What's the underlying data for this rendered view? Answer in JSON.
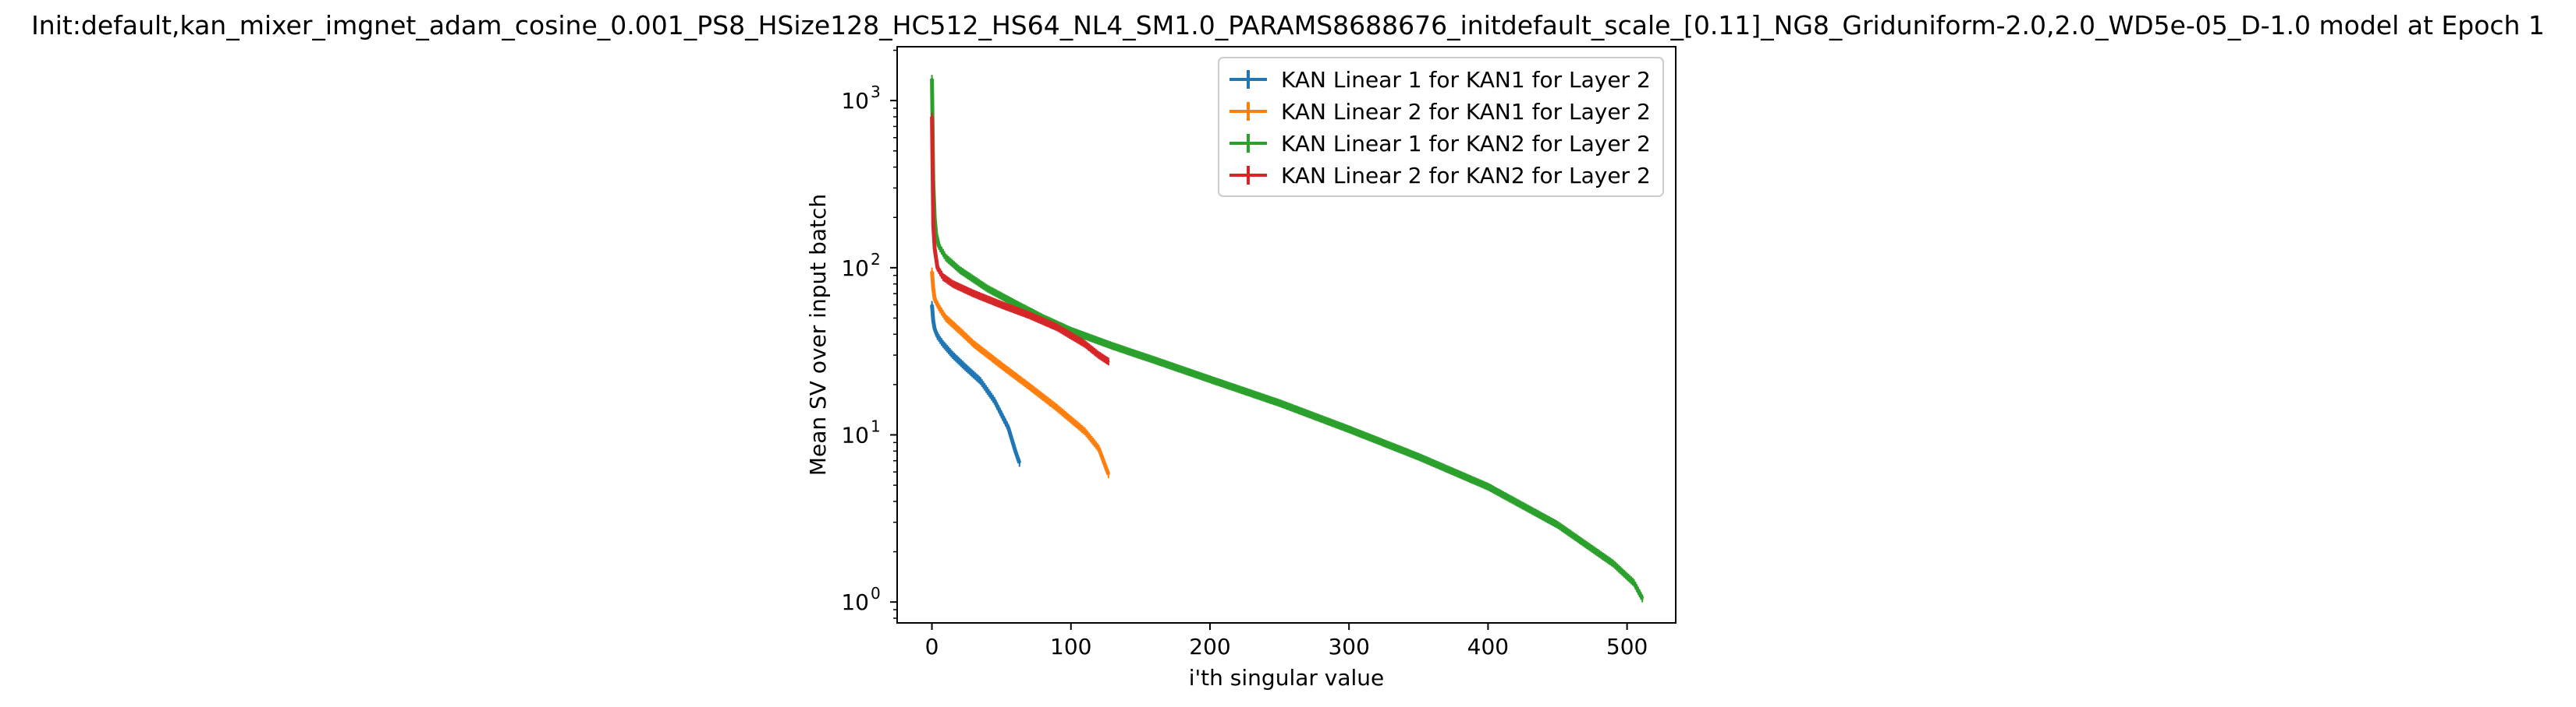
{
  "chart_data": {
    "type": "line",
    "title": "Init:default,kan_mixer_imgnet_adam_cosine_0.001_PS8_HSize128_HC512_HS64_NL4_SM1.0_PARAMS8688676_initdefault_scale_[0.11]_NG8_Griduniform-2.0,2.0_WD5e-05_D-1.0 model at Epoch 1",
    "xlabel": "i'th singular value",
    "ylabel": "Mean SV over input batch",
    "xlim": [
      -25,
      535
    ],
    "ylim": [
      0.75,
      2100
    ],
    "yscale": "log",
    "grid": false,
    "legend_position": "top-right",
    "x_ticks": [
      {
        "value": 0,
        "label": "0"
      },
      {
        "value": 100,
        "label": "100"
      },
      {
        "value": 200,
        "label": "200"
      },
      {
        "value": 300,
        "label": "300"
      },
      {
        "value": 400,
        "label": "400"
      },
      {
        "value": 500,
        "label": "500"
      }
    ],
    "y_ticks": [
      {
        "value": 1,
        "label": "10",
        "exp": "0"
      },
      {
        "value": 10,
        "label": "10",
        "exp": "1"
      },
      {
        "value": 100,
        "label": "10",
        "exp": "2"
      },
      {
        "value": 1000,
        "label": "10",
        "exp": "3"
      }
    ],
    "series": [
      {
        "name": "KAN Linear 1 for KAN1 for Layer 2",
        "color": "#1f77b4",
        "x": [
          0,
          1,
          2,
          4,
          8,
          15,
          25,
          35,
          45,
          55,
          60,
          63
        ],
        "y": [
          60,
          48,
          43,
          39,
          35,
          30,
          25,
          21,
          16,
          11,
          8,
          6.8
        ]
      },
      {
        "name": "KAN Linear 2 for KAN1 for Layer 2",
        "color": "#ff7f0e",
        "x": [
          0,
          1,
          2,
          5,
          10,
          20,
          30,
          50,
          70,
          90,
          110,
          120,
          127
        ],
        "y": [
          95,
          75,
          65,
          58,
          50,
          42,
          35,
          26,
          19.5,
          14.5,
          10.5,
          8.3,
          5.8
        ]
      },
      {
        "name": "KAN Linear 1 for KAN2 for Layer 2",
        "color": "#2ca02c",
        "x": [
          0,
          1,
          2,
          3,
          5,
          10,
          20,
          40,
          60,
          80,
          100,
          130,
          160,
          200,
          250,
          300,
          350,
          400,
          450,
          490,
          505,
          511
        ],
        "y": [
          1350,
          330,
          200,
          160,
          135,
          115,
          97,
          75,
          61,
          50,
          42,
          34,
          28,
          21.5,
          15.5,
          10.8,
          7.4,
          4.9,
          2.9,
          1.7,
          1.3,
          1.05
        ]
      },
      {
        "name": "KAN Linear 2 for KAN2 for Layer 2",
        "color": "#d62728",
        "x": [
          0,
          1,
          2,
          4,
          8,
          15,
          30,
          50,
          70,
          90,
          110,
          120,
          127
        ],
        "y": [
          800,
          180,
          130,
          100,
          88,
          80,
          70,
          60,
          52,
          44,
          35,
          30,
          27.5
        ]
      }
    ]
  }
}
